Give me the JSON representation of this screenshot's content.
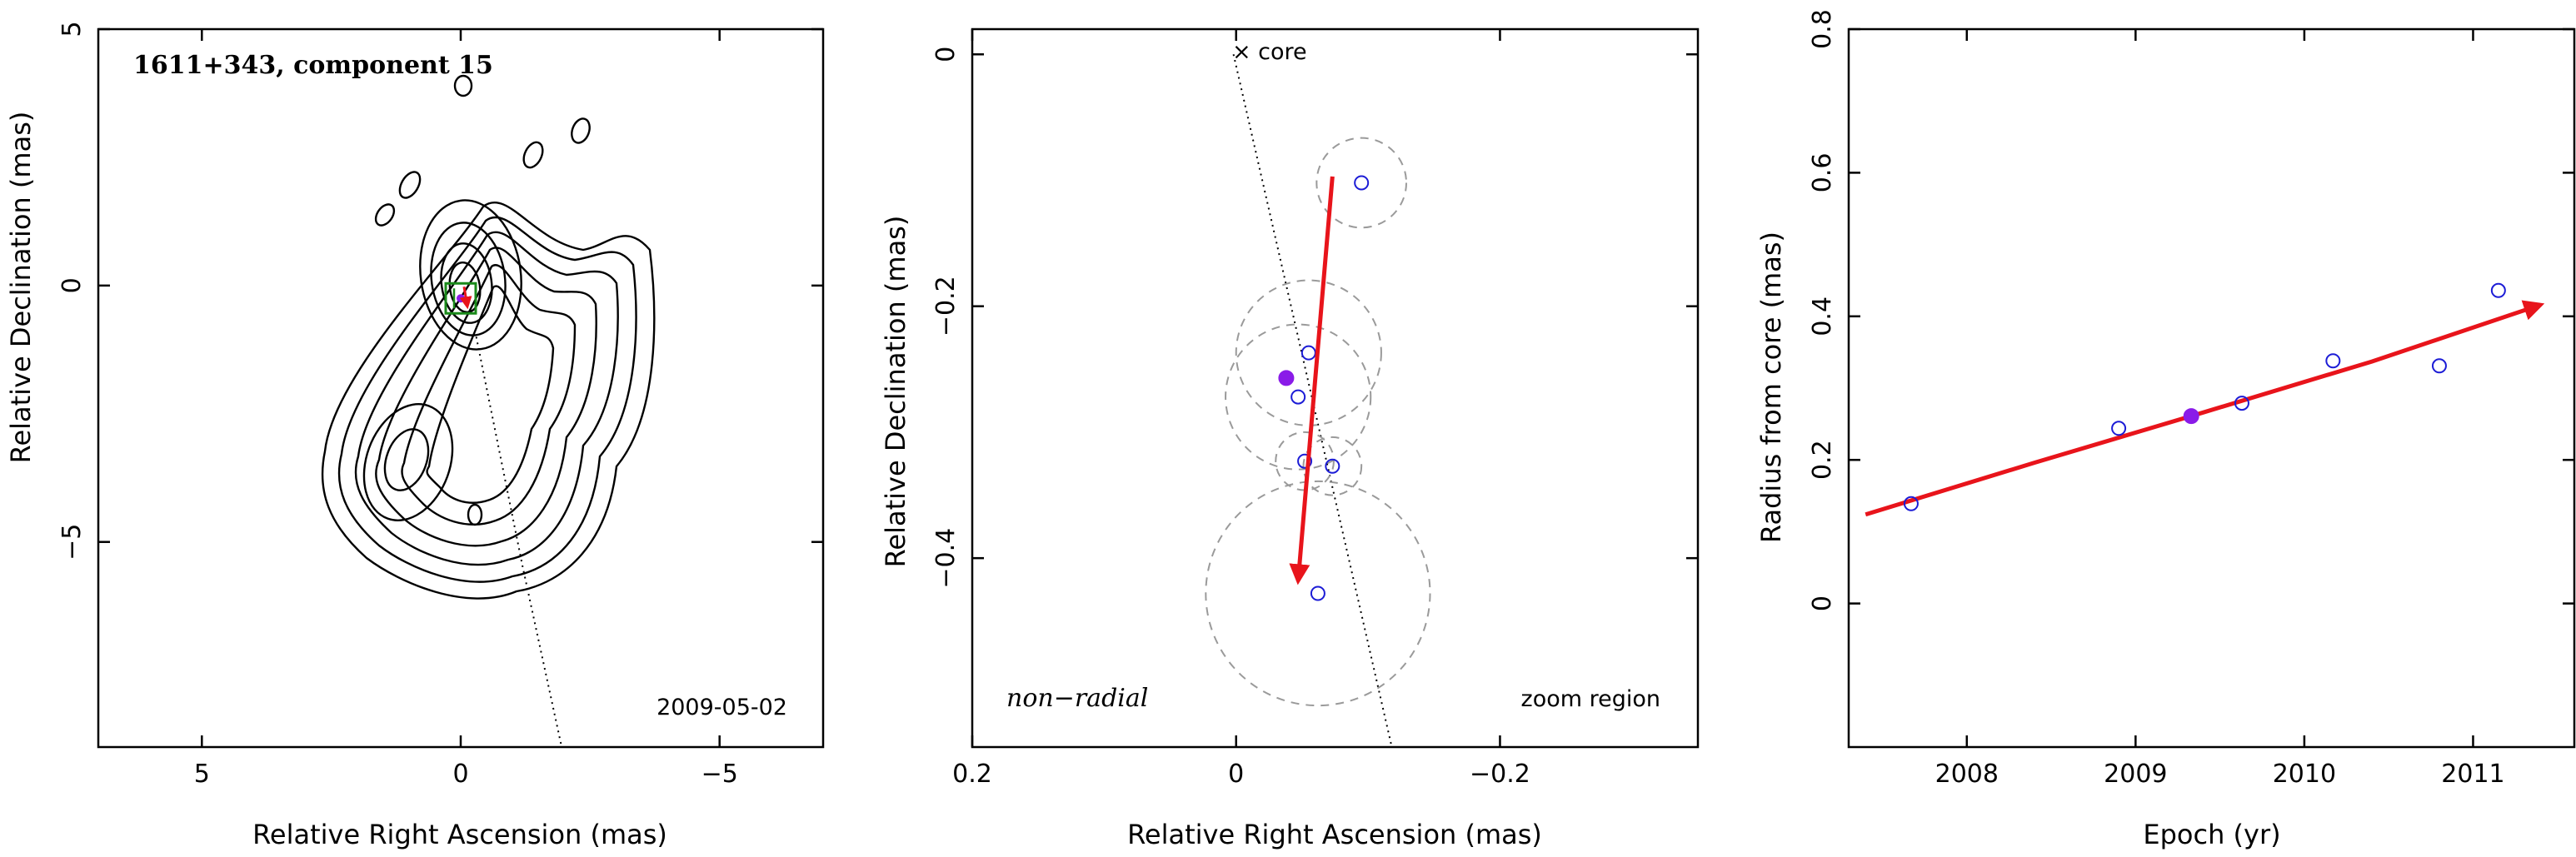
{
  "chart_data": [
    {
      "type": "contour",
      "panel": "left",
      "annotation": "1611+343, component 15",
      "date": "2009-05-02",
      "xlabel": "Relative Right Ascension (mas)",
      "ylabel": "Relative Declination (mas)",
      "xlim": [
        7,
        -7
      ],
      "ylim": [
        -9,
        5
      ],
      "xticks": [
        5,
        0,
        -5
      ],
      "xticklabels": [
        "5",
        "0",
        "−5"
      ],
      "yticks": [
        5,
        0,
        -5
      ],
      "yticklabels": [
        "5",
        "0",
        "−5"
      ],
      "component_position": {
        "x": 0.0,
        "y": -0.25
      },
      "trajectory_direction": "toward lower right"
    },
    {
      "type": "scatter",
      "panel": "middle",
      "label_left": "non−radial",
      "label_right": "zoom region",
      "core_label": "× core",
      "xlabel": "Relative Right Ascension (mas)",
      "ylabel": "Relative Declination (mas)",
      "xlim": [
        0.2,
        -0.35
      ],
      "ylim": [
        -0.55,
        0.02
      ],
      "xticks": [
        0.2,
        0,
        -0.2
      ],
      "xticklabels": [
        "0.2",
        "0",
        "−0.2"
      ],
      "yticks": [
        0,
        -0.2,
        -0.4
      ],
      "yticklabels": [
        "0",
        "−0.2",
        "−0.4"
      ],
      "points": [
        {
          "x": -0.095,
          "y": -0.102,
          "err": 0.034
        },
        {
          "x": -0.055,
          "y": -0.237,
          "err": 0.055
        },
        {
          "x": -0.047,
          "y": -0.272,
          "err": 0.055
        },
        {
          "x": -0.052,
          "y": -0.323,
          "err": 0.022
        },
        {
          "x": -0.073,
          "y": -0.327,
          "err": 0.022
        },
        {
          "x": -0.062,
          "y": -0.428,
          "err": 0.085
        }
      ],
      "selected_point": {
        "x": -0.038,
        "y": -0.257
      },
      "arrow": {
        "from": [
          -0.073,
          -0.097
        ],
        "to": [
          -0.047,
          -0.418
        ]
      },
      "ridge_line": {
        "from": [
          0.002,
          0.0
        ],
        "to": [
          -0.118,
          -0.55
        ]
      }
    },
    {
      "type": "scatter",
      "panel": "right",
      "xlabel": "Epoch (yr)",
      "ylabel": "Radius from core (mas)",
      "xlim": [
        2007.3,
        2011.6
      ],
      "ylim": [
        -0.2,
        0.8
      ],
      "xticks": [
        2008,
        2009,
        2010,
        2011
      ],
      "xticklabels": [
        "2008",
        "2009",
        "2010",
        "2011"
      ],
      "yticks": [
        0,
        0.2,
        0.4,
        0.6,
        0.8
      ],
      "yticklabels": [
        "0",
        "0.2",
        "0.4",
        "0.6",
        "0.8"
      ],
      "points": [
        {
          "x": 2007.67,
          "y": 0.139
        },
        {
          "x": 2008.9,
          "y": 0.244
        },
        {
          "x": 2009.63,
          "y": 0.279
        },
        {
          "x": 2010.17,
          "y": 0.338
        },
        {
          "x": 2010.8,
          "y": 0.331
        },
        {
          "x": 2011.15,
          "y": 0.436
        }
      ],
      "selected_point": {
        "x": 2009.33,
        "y": 0.261
      },
      "fit_curve": [
        [
          2007.4,
          0.124
        ],
        [
          2008.4,
          0.196
        ],
        [
          2009.4,
          0.266
        ],
        [
          2010.4,
          0.337
        ],
        [
          2011.4,
          0.416
        ]
      ]
    }
  ]
}
